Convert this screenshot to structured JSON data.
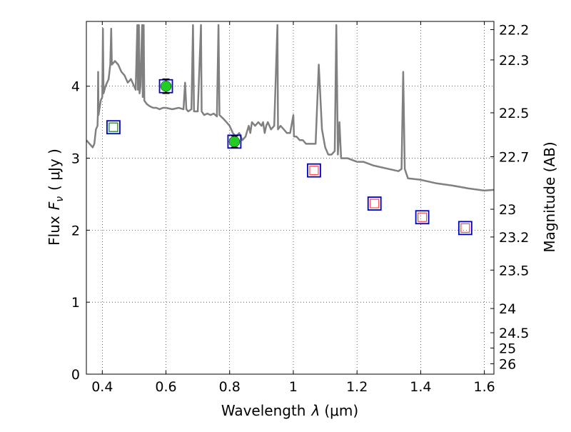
{
  "chart_data": {
    "type": "scatter",
    "xlabel_prefix": "Wavelength",
    "xlabel_symbol": "λ",
    "xlabel_unit": "(μm)",
    "ylabel_prefix": "Flux",
    "ylabel_symbol": "F",
    "ylabel_sub": "ν",
    "ylabel_unit": "( μJy )",
    "y2label": "Magnitude (AB)",
    "xlim": [
      0.35,
      1.63
    ],
    "ylim": [
      0,
      4.9
    ],
    "x_ticks": [
      0.4,
      0.6,
      0.8,
      1.0,
      1.2,
      1.4,
      1.6
    ],
    "x_tick_labels": [
      "0.4",
      "0.6",
      "0.8",
      "1",
      "1.2",
      "1.4",
      "1.6"
    ],
    "y_ticks": [
      0,
      1,
      2,
      3,
      4
    ],
    "y_tick_labels": [
      "0",
      "1",
      "2",
      "3",
      "4"
    ],
    "y2_ticks": [
      22.2,
      22.3,
      22.5,
      22.7,
      23,
      23.2,
      23.5,
      24,
      24.5,
      25,
      26
    ],
    "y2_tick_labels": [
      "22.2",
      "22.3",
      "22.5",
      "22.7",
      "23",
      "23.2",
      "23.5",
      "24",
      "24.5",
      "25",
      "26"
    ],
    "grid": true,
    "colors": {
      "spectrum": "#808080",
      "square_outer": "#0000cc",
      "square_green": "#2e8b2e",
      "square_red": "#ff4444",
      "detection": "#22cc22"
    },
    "series": [
      {
        "type": "line",
        "points": [
          [
            0.35,
            3.25
          ],
          [
            0.36,
            3.2
          ],
          [
            0.37,
            3.15
          ],
          [
            0.375,
            3.2
          ],
          [
            0.38,
            3.4
          ],
          [
            0.385,
            3.45
          ],
          [
            0.386,
            3.6
          ],
          [
            0.387,
            4.2
          ],
          [
            0.388,
            3.6
          ],
          [
            0.39,
            3.65
          ],
          [
            0.395,
            3.8
          ],
          [
            0.4,
            3.85
          ],
          [
            0.402,
            4.8
          ],
          [
            0.404,
            3.9
          ],
          [
            0.41,
            4.0
          ],
          [
            0.42,
            4.1
          ],
          [
            0.425,
            4.3
          ],
          [
            0.428,
            4.8
          ],
          [
            0.43,
            4.3
          ],
          [
            0.44,
            4.35
          ],
          [
            0.45,
            4.3
          ],
          [
            0.46,
            4.2
          ],
          [
            0.47,
            4.15
          ],
          [
            0.48,
            4.05
          ],
          [
            0.49,
            4.1
          ],
          [
            0.5,
            4.0
          ],
          [
            0.505,
            3.95
          ],
          [
            0.51,
            4.85
          ],
          [
            0.512,
            3.95
          ],
          [
            0.515,
            4.85
          ],
          [
            0.517,
            3.9
          ],
          [
            0.52,
            4.0
          ],
          [
            0.525,
            4.85
          ],
          [
            0.527,
            3.85
          ],
          [
            0.53,
            4.85
          ],
          [
            0.532,
            3.8
          ],
          [
            0.54,
            3.75
          ],
          [
            0.55,
            3.72
          ],
          [
            0.56,
            3.7
          ],
          [
            0.57,
            3.7
          ],
          [
            0.58,
            3.68
          ],
          [
            0.59,
            3.7
          ],
          [
            0.6,
            3.7
          ],
          [
            0.62,
            3.68
          ],
          [
            0.64,
            3.7
          ],
          [
            0.655,
            3.68
          ],
          [
            0.66,
            4.05
          ],
          [
            0.664,
            3.68
          ],
          [
            0.67,
            3.65
          ],
          [
            0.68,
            3.68
          ],
          [
            0.685,
            4.85
          ],
          [
            0.688,
            3.65
          ],
          [
            0.7,
            3.65
          ],
          [
            0.71,
            4.85
          ],
          [
            0.712,
            3.65
          ],
          [
            0.72,
            3.6
          ],
          [
            0.73,
            3.62
          ],
          [
            0.74,
            3.6
          ],
          [
            0.75,
            3.62
          ],
          [
            0.76,
            3.58
          ],
          [
            0.765,
            4.85
          ],
          [
            0.768,
            3.6
          ],
          [
            0.78,
            3.55
          ],
          [
            0.79,
            3.5
          ],
          [
            0.8,
            3.45
          ],
          [
            0.81,
            3.35
          ],
          [
            0.82,
            3.3
          ],
          [
            0.83,
            3.35
          ],
          [
            0.84,
            3.25
          ],
          [
            0.85,
            3.3
          ],
          [
            0.86,
            3.45
          ],
          [
            0.865,
            3.35
          ],
          [
            0.87,
            3.5
          ],
          [
            0.88,
            3.45
          ],
          [
            0.89,
            3.5
          ],
          [
            0.9,
            3.45
          ],
          [
            0.905,
            3.5
          ],
          [
            0.91,
            3.35
          ],
          [
            0.915,
            3.45
          ],
          [
            0.92,
            3.5
          ],
          [
            0.93,
            3.4
          ],
          [
            0.94,
            3.45
          ],
          [
            0.95,
            4.85
          ],
          [
            0.952,
            3.4
          ],
          [
            0.96,
            3.45
          ],
          [
            0.97,
            3.4
          ],
          [
            0.98,
            3.35
          ],
          [
            0.99,
            3.35
          ],
          [
            1.0,
            3.6
          ],
          [
            1.002,
            3.3
          ],
          [
            1.01,
            3.3
          ],
          [
            1.02,
            3.25
          ],
          [
            1.03,
            3.25
          ],
          [
            1.04,
            3.2
          ],
          [
            1.06,
            3.2
          ],
          [
            1.07,
            3.2
          ],
          [
            1.08,
            4.3
          ],
          [
            1.09,
            3.4
          ],
          [
            1.1,
            3.15
          ],
          [
            1.11,
            3.05
          ],
          [
            1.12,
            3.05
          ],
          [
            1.13,
            3.1
          ],
          [
            1.135,
            4.85
          ],
          [
            1.14,
            3.05
          ],
          [
            1.145,
            3.5
          ],
          [
            1.15,
            3.0
          ],
          [
            1.17,
            3.0
          ],
          [
            1.2,
            2.95
          ],
          [
            1.22,
            2.95
          ],
          [
            1.25,
            2.9
          ],
          [
            1.3,
            2.85
          ],
          [
            1.33,
            2.82
          ],
          [
            1.34,
            2.85
          ],
          [
            1.345,
            4.2
          ],
          [
            1.35,
            2.85
          ],
          [
            1.36,
            2.72
          ],
          [
            1.4,
            2.7
          ],
          [
            1.45,
            2.65
          ],
          [
            1.5,
            2.62
          ],
          [
            1.55,
            2.58
          ],
          [
            1.6,
            2.55
          ],
          [
            1.63,
            2.56
          ]
        ]
      },
      {
        "type": "scatter",
        "marker": "square",
        "points": [
          {
            "x": 0.435,
            "y": 3.43,
            "inner": "green"
          },
          {
            "x": 0.6,
            "y": 4.0,
            "inner": "none"
          },
          {
            "x": 0.815,
            "y": 3.23,
            "inner": "none"
          },
          {
            "x": 1.065,
            "y": 2.83,
            "inner": "red"
          },
          {
            "x": 1.255,
            "y": 2.37,
            "inner": "red"
          },
          {
            "x": 1.405,
            "y": 2.18,
            "inner": "red"
          },
          {
            "x": 1.54,
            "y": 2.03,
            "inner": "red"
          }
        ]
      },
      {
        "type": "errorbar",
        "marker": "circle",
        "points": [
          {
            "x": 0.6,
            "y": 4.0,
            "yerr": 0.1
          },
          {
            "x": 0.815,
            "y": 3.23,
            "yerr": 0.08
          }
        ]
      }
    ]
  }
}
